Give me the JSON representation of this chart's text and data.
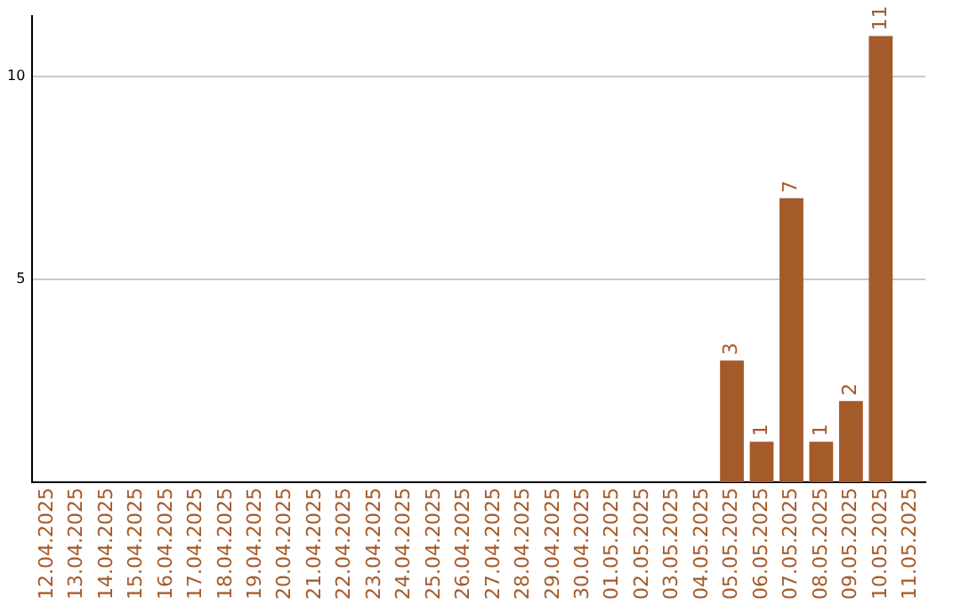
{
  "chart_data": {
    "type": "bar",
    "categories": [
      "12.04.2025",
      "13.04.2025",
      "14.04.2025",
      "15.04.2025",
      "16.04.2025",
      "17.04.2025",
      "18.04.2025",
      "19.04.2025",
      "20.04.2025",
      "21.04.2025",
      "22.04.2025",
      "23.04.2025",
      "24.04.2025",
      "25.04.2025",
      "26.04.2025",
      "27.04.2025",
      "28.04.2025",
      "29.04.2025",
      "30.04.2025",
      "01.05.2025",
      "02.05.2025",
      "03.05.2025",
      "04.05.2025",
      "05.05.2025",
      "06.05.2025",
      "07.05.2025",
      "08.05.2025",
      "09.05.2025",
      "10.05.2025",
      "11.05.2025"
    ],
    "values": [
      0,
      0,
      0,
      0,
      0,
      0,
      0,
      0,
      0,
      0,
      0,
      0,
      0,
      0,
      0,
      0,
      0,
      0,
      0,
      0,
      0,
      0,
      0,
      3,
      1,
      7,
      1,
      2,
      11,
      0
    ],
    "value_labels": [
      null,
      null,
      null,
      null,
      null,
      null,
      null,
      null,
      null,
      null,
      null,
      null,
      null,
      null,
      null,
      null,
      null,
      null,
      null,
      null,
      null,
      null,
      null,
      "3",
      "1",
      "7",
      "1",
      "2",
      "11",
      null
    ],
    "color": "#a55a2a",
    "ylim": [
      0,
      11.5
    ],
    "yticks": [
      5,
      10
    ],
    "grid": "y",
    "legend": false
  }
}
